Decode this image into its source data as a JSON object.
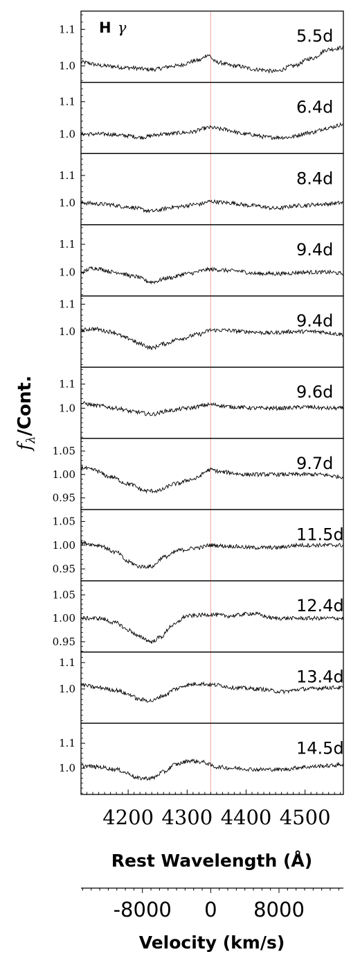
{
  "chart_data": {
    "type": "line",
    "line_label": "H",
    "line_label_greek": "γ",
    "ylabel_symbol": "f",
    "ylabel_symbol_sub": "λ",
    "ylabel_text": "/Cont.",
    "xlabel": "Rest Wavelength (Å)",
    "xlim": [
      4120,
      4565
    ],
    "xticks": [
      4200,
      4300,
      4400,
      4500
    ],
    "rest_wavelength": 4340,
    "line_color": "#f4b0b0",
    "velocity_axis": {
      "label": "Velocity (km/s)",
      "ticks": [
        "-8000",
        "0",
        "8000"
      ],
      "tick_values": [
        -8000,
        0,
        8000
      ]
    },
    "panels": [
      {
        "label": "5.5d",
        "ylim": [
          0.955,
          1.15
        ],
        "yticks": [
          "1.0",
          "1.1"
        ],
        "ytick_values": [
          1.0,
          1.1
        ],
        "points": [
          [
            4120,
            1.01
          ],
          [
            4160,
            1.0
          ],
          [
            4200,
            0.995
          ],
          [
            4240,
            0.99
          ],
          [
            4280,
            1.0
          ],
          [
            4320,
            1.015
          ],
          [
            4335,
            1.03
          ],
          [
            4350,
            1.01
          ],
          [
            4380,
            1.0
          ],
          [
            4420,
            0.99
          ],
          [
            4450,
            0.985
          ],
          [
            4480,
            1.0
          ],
          [
            4510,
            1.02
          ],
          [
            4540,
            1.045
          ],
          [
            4565,
            1.05
          ]
        ]
      },
      {
        "label": "6.4d",
        "ylim": [
          0.94,
          1.16
        ],
        "yticks": [
          "1.0",
          "1.1"
        ],
        "ytick_values": [
          1.0,
          1.1
        ],
        "points": [
          [
            4120,
            1.0
          ],
          [
            4160,
            1.0
          ],
          [
            4200,
            0.995
          ],
          [
            4220,
            0.99
          ],
          [
            4260,
            1.0
          ],
          [
            4300,
            1.005
          ],
          [
            4340,
            1.02
          ],
          [
            4360,
            1.015
          ],
          [
            4400,
            1.0
          ],
          [
            4440,
            0.99
          ],
          [
            4470,
            0.99
          ],
          [
            4510,
            1.005
          ],
          [
            4540,
            1.02
          ],
          [
            4565,
            1.03
          ]
        ]
      },
      {
        "label": "8.4d",
        "ylim": [
          0.92,
          1.18
        ],
        "yticks": [
          "1.0",
          "1.1"
        ],
        "ytick_values": [
          1.0,
          1.1
        ],
        "points": [
          [
            4120,
            1.0
          ],
          [
            4160,
            0.995
          ],
          [
            4200,
            0.985
          ],
          [
            4240,
            0.97
          ],
          [
            4280,
            0.985
          ],
          [
            4320,
            0.995
          ],
          [
            4340,
            1.005
          ],
          [
            4370,
            1.0
          ],
          [
            4410,
            0.99
          ],
          [
            4450,
            0.98
          ],
          [
            4490,
            0.99
          ],
          [
            4530,
            0.995
          ],
          [
            4565,
            1.0
          ]
        ]
      },
      {
        "label": "9.4d",
        "ylim": [
          0.915,
          1.17
        ],
        "yticks": [
          "1.0",
          "1.1"
        ],
        "ytick_values": [
          1.0,
          1.1
        ],
        "points": [
          [
            4120,
            1.0
          ],
          [
            4140,
            1.015
          ],
          [
            4180,
            1.0
          ],
          [
            4210,
            0.985
          ],
          [
            4240,
            0.965
          ],
          [
            4270,
            0.98
          ],
          [
            4300,
            0.995
          ],
          [
            4340,
            1.01
          ],
          [
            4380,
            1.005
          ],
          [
            4420,
            0.995
          ],
          [
            4460,
            0.995
          ],
          [
            4500,
            1.0
          ],
          [
            4540,
            1.0
          ],
          [
            4565,
            0.995
          ]
        ]
      },
      {
        "label": "9.4d",
        "ylim": [
          0.87,
          1.13
        ],
        "yticks": [
          "1.0",
          "1.1"
        ],
        "ytick_values": [
          1.0,
          1.1
        ],
        "points": [
          [
            4120,
            1.005
          ],
          [
            4140,
            1.01
          ],
          [
            4170,
            1.0
          ],
          [
            4200,
            0.975
          ],
          [
            4220,
            0.955
          ],
          [
            4240,
            0.94
          ],
          [
            4260,
            0.955
          ],
          [
            4290,
            0.975
          ],
          [
            4320,
            0.99
          ],
          [
            4340,
            1.005
          ],
          [
            4360,
            1.005
          ],
          [
            4400,
            1.0
          ],
          [
            4440,
            0.995
          ],
          [
            4480,
            1.0
          ],
          [
            4520,
            1.0
          ],
          [
            4565,
            0.99
          ]
        ]
      },
      {
        "label": "9.6d",
        "ylim": [
          0.875,
          1.17
        ],
        "yticks": [
          "1.0",
          "1.1"
        ],
        "ytick_values": [
          1.0,
          1.1
        ],
        "points": [
          [
            4120,
            1.02
          ],
          [
            4150,
            1.01
          ],
          [
            4180,
            1.0
          ],
          [
            4210,
            0.985
          ],
          [
            4240,
            0.975
          ],
          [
            4270,
            0.99
          ],
          [
            4300,
            1.0
          ],
          [
            4340,
            1.015
          ],
          [
            4380,
            1.005
          ],
          [
            4420,
            1.0
          ],
          [
            4460,
            1.0
          ],
          [
            4500,
            1.005
          ],
          [
            4540,
            1.0
          ],
          [
            4565,
            1.0
          ]
        ]
      },
      {
        "label": "9.7d",
        "ylim": [
          0.925,
          1.077
        ],
        "yticks": [
          "1.05",
          "1.00",
          "0.95"
        ],
        "ytick_values": [
          1.05,
          1.0,
          0.95
        ],
        "points": [
          [
            4120,
            1.015
          ],
          [
            4140,
            1.01
          ],
          [
            4170,
            0.995
          ],
          [
            4200,
            0.98
          ],
          [
            4230,
            0.965
          ],
          [
            4250,
            0.965
          ],
          [
            4280,
            0.98
          ],
          [
            4310,
            0.99
          ],
          [
            4340,
            1.01
          ],
          [
            4360,
            1.005
          ],
          [
            4400,
            1.0
          ],
          [
            4440,
            1.0
          ],
          [
            4480,
            1.0
          ],
          [
            4520,
            1.0
          ],
          [
            4565,
            0.995
          ]
        ]
      },
      {
        "label": "11.5d",
        "ylim": [
          0.925,
          1.075
        ],
        "yticks": [
          "1.05",
          "1.00",
          "0.95"
        ],
        "ytick_values": [
          1.05,
          1.0,
          0.95
        ],
        "points": [
          [
            4120,
            1.005
          ],
          [
            4150,
            1.0
          ],
          [
            4180,
            0.985
          ],
          [
            4200,
            0.965
          ],
          [
            4220,
            0.955
          ],
          [
            4240,
            0.955
          ],
          [
            4260,
            0.975
          ],
          [
            4290,
            0.99
          ],
          [
            4320,
            0.995
          ],
          [
            4340,
            1.0
          ],
          [
            4370,
            0.998
          ],
          [
            4410,
            0.995
          ],
          [
            4450,
            0.995
          ],
          [
            4490,
            1.0
          ],
          [
            4530,
            1.0
          ],
          [
            4565,
            1.0
          ]
        ]
      },
      {
        "label": "12.4d",
        "ylim": [
          0.928,
          1.08
        ],
        "yticks": [
          "1.05",
          "1.00",
          "0.95"
        ],
        "ytick_values": [
          1.05,
          1.0,
          0.95
        ],
        "points": [
          [
            4120,
            1.0
          ],
          [
            4150,
            1.0
          ],
          [
            4180,
            0.99
          ],
          [
            4200,
            0.975
          ],
          [
            4220,
            0.96
          ],
          [
            4240,
            0.95
          ],
          [
            4255,
            0.96
          ],
          [
            4275,
            0.985
          ],
          [
            4300,
            1.005
          ],
          [
            4340,
            1.008
          ],
          [
            4370,
            1.005
          ],
          [
            4410,
            1.01
          ],
          [
            4450,
            1.0
          ],
          [
            4490,
            1.0
          ],
          [
            4530,
            1.0
          ],
          [
            4565,
            1.0
          ]
        ]
      },
      {
        "label": "13.4d",
        "ylim": [
          0.87,
          1.14
        ],
        "yticks": [
          "1.0",
          "1.1"
        ],
        "ytick_values": [
          1.0,
          1.1
        ],
        "points": [
          [
            4120,
            1.015
          ],
          [
            4150,
            1.005
          ],
          [
            4180,
            0.995
          ],
          [
            4200,
            0.98
          ],
          [
            4220,
            0.96
          ],
          [
            4240,
            0.955
          ],
          [
            4260,
            0.975
          ],
          [
            4280,
            1.0
          ],
          [
            4300,
            1.015
          ],
          [
            4320,
            1.02
          ],
          [
            4350,
            1.015
          ],
          [
            4380,
            1.005
          ],
          [
            4420,
            1.0
          ],
          [
            4460,
            0.99
          ],
          [
            4500,
            1.0
          ],
          [
            4540,
            1.005
          ],
          [
            4565,
            1.005
          ]
        ]
      },
      {
        "label": "14.5d",
        "ylim": [
          0.895,
          1.18
        ],
        "yticks": [
          "1.0",
          "1.1"
        ],
        "ytick_values": [
          1.0,
          1.1
        ],
        "points": [
          [
            4120,
            1.01
          ],
          [
            4150,
            1.005
          ],
          [
            4180,
            0.995
          ],
          [
            4200,
            0.98
          ],
          [
            4215,
            0.96
          ],
          [
            4240,
            0.96
          ],
          [
            4260,
            0.985
          ],
          [
            4280,
            1.015
          ],
          [
            4305,
            1.03
          ],
          [
            4325,
            1.025
          ],
          [
            4350,
            1.005
          ],
          [
            4380,
            1.0
          ],
          [
            4420,
            0.995
          ],
          [
            4460,
            0.995
          ],
          [
            4500,
            1.005
          ],
          [
            4540,
            1.01
          ],
          [
            4565,
            1.015
          ]
        ]
      }
    ]
  }
}
